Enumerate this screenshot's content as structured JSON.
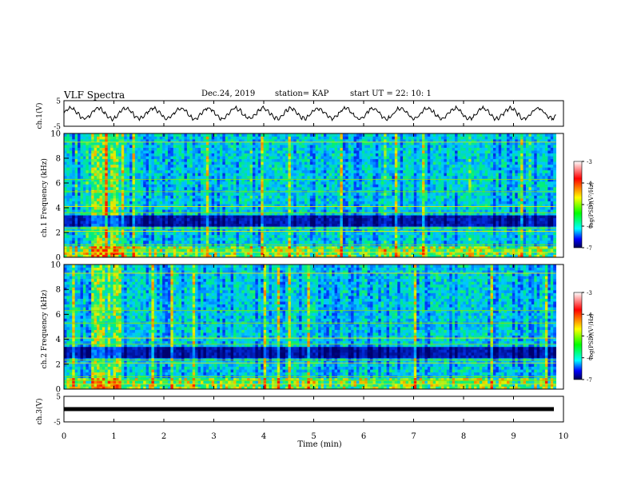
{
  "header": {
    "title": "VLF Spectra",
    "date": "Dec.24, 2019",
    "station": "station= KAP",
    "start": "start  UT =   22: 10: 1"
  },
  "chart_data": [
    {
      "type": "line",
      "name": "waveform-ch1",
      "ylabel": "ch.1(V)",
      "ylim": [
        -5,
        5
      ],
      "y_ticks": [
        "5",
        "-5"
      ],
      "xlim": [
        0,
        10
      ],
      "approx_period_min": 0.55,
      "approx_amplitude_v": 2.0
    },
    {
      "type": "heatmap",
      "name": "spectrogram-ch1",
      "ylabel": "ch.1 Frequency (kHz)",
      "ylim": [
        0,
        10
      ],
      "y_ticks": [
        "0",
        "2",
        "4",
        "6",
        "8",
        "10"
      ],
      "x_data_extent": [
        0,
        9.85
      ],
      "low_power_band_khz": [
        2.5,
        3.5
      ],
      "bright_interval_min": [
        0.55,
        1.15
      ],
      "colorbar": {
        "label": "log(PSD)(V²/Hz)",
        "range": [
          -7,
          -3
        ],
        "ticks": [
          "-3",
          "-4",
          "-5",
          "-6",
          "-7"
        ]
      }
    },
    {
      "type": "heatmap",
      "name": "spectrogram-ch2",
      "ylabel": "ch.2 Frequency (kHz)",
      "ylim": [
        0,
        10
      ],
      "y_ticks": [
        "0",
        "2",
        "4",
        "6",
        "8",
        "10"
      ],
      "x_data_extent": [
        0,
        9.85
      ],
      "low_power_band_khz": [
        2.5,
        3.5
      ],
      "bright_interval_min": [
        0.55,
        1.15
      ],
      "colorbar": {
        "label": "log(PSD)(V²/Hz)",
        "range": [
          -7,
          -3
        ],
        "ticks": [
          "-3",
          "-4",
          "-5",
          "-6",
          "-7"
        ]
      }
    },
    {
      "type": "line",
      "name": "waveform-ch3",
      "ylabel": "ch.3(V)",
      "ylim": [
        -5,
        5
      ],
      "y_ticks": [
        "5",
        "-5"
      ],
      "constant_value_v": 0,
      "xlim": [
        0,
        10
      ],
      "xlabel": "Time  (min)",
      "x_ticks": [
        "0",
        "1",
        "2",
        "3",
        "4",
        "5",
        "6",
        "7",
        "8",
        "9",
        "10"
      ]
    }
  ]
}
